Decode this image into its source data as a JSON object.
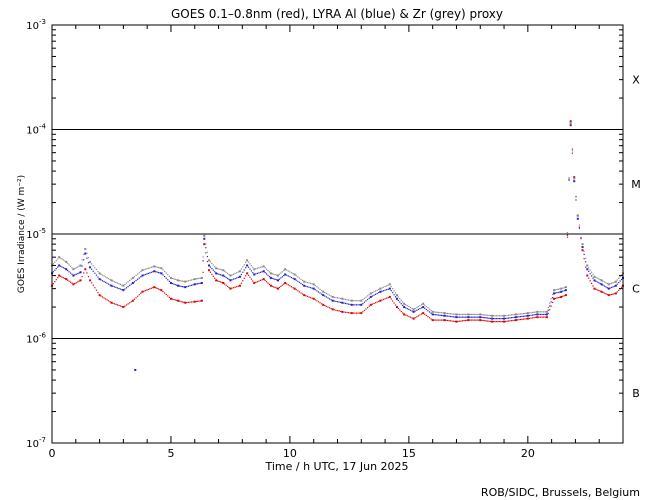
{
  "chart_data": {
    "type": "scatter",
    "title": "GOES 0.1–0.8nm (red), LYRA Al (blue) & Zr (grey) proxy",
    "xlabel": "Time / h UTC, 17 Jun 2025",
    "ylabel": "GOES Irradiance / (W m⁻²)",
    "xlim": [
      0,
      24
    ],
    "ylim": [
      1e-07,
      0.001
    ],
    "yscale": "log",
    "x_ticks": [
      0,
      5,
      10,
      15,
      20
    ],
    "x_tick_labels": [
      "0",
      "5",
      "10",
      "15",
      "20"
    ],
    "y_ticks": [
      {
        "base": "10",
        "exp": "-7",
        "value": 1e-07
      },
      {
        "base": "10",
        "exp": "-6",
        "value": 1e-06
      },
      {
        "base": "10",
        "exp": "-5",
        "value": 1e-05
      },
      {
        "base": "10",
        "exp": "-4",
        "value": 0.0001
      },
      {
        "base": "10",
        "exp": "-3",
        "value": 0.001
      }
    ],
    "flare_class_lines": [
      1e-06,
      1e-05,
      0.0001
    ],
    "flare_classes": [
      {
        "label": "B",
        "value": 3e-07
      },
      {
        "label": "C",
        "value": 3e-06
      },
      {
        "label": "M",
        "value": 3e-05
      },
      {
        "label": "X",
        "value": 0.0003
      }
    ],
    "series": [
      {
        "name": "GOES 0.1–0.8nm",
        "color": "#e00000",
        "x": [
          0.0,
          0.3,
          0.6,
          0.9,
          1.2,
          1.4,
          1.6,
          2.0,
          2.5,
          3.0,
          3.4,
          3.8,
          4.3,
          4.6,
          5.0,
          5.3,
          5.6,
          6.0,
          6.3,
          6.4,
          6.6,
          6.9,
          7.2,
          7.5,
          7.9,
          8.2,
          8.5,
          8.9,
          9.2,
          9.5,
          9.8,
          10.2,
          10.6,
          11.0,
          11.4,
          11.8,
          12.2,
          12.6,
          13.0,
          13.4,
          13.8,
          14.2,
          14.5,
          14.8,
          15.2,
          15.6,
          16.0,
          16.5,
          17.0,
          17.5,
          18.0,
          18.5,
          19.0,
          19.5,
          20.0,
          20.4,
          20.8,
          21.1,
          21.4,
          21.6,
          21.8,
          21.95,
          22.1,
          22.3,
          22.5,
          22.8,
          23.1,
          23.4,
          23.7,
          24.0
        ],
        "y": [
          3.2e-06,
          4e-06,
          3.7e-06,
          3.3e-06,
          3.6e-06,
          4.6e-06,
          3.6e-06,
          2.6e-06,
          2.2e-06,
          2e-06,
          2.3e-06,
          2.8e-06,
          3.1e-06,
          2.9e-06,
          2.4e-06,
          2.3e-06,
          2.2e-06,
          2.25e-06,
          2.3e-06,
          8e-06,
          4.5e-06,
          3.6e-06,
          3.4e-06,
          3e-06,
          3.2e-06,
          4.2e-06,
          3.4e-06,
          3.7e-06,
          3.2e-06,
          3e-06,
          3.4e-06,
          3e-06,
          2.6e-06,
          2.4e-06,
          2.1e-06,
          1.9e-06,
          1.8e-06,
          1.75e-06,
          1.75e-06,
          2.1e-06,
          2.3e-06,
          2.5e-06,
          2e-06,
          1.7e-06,
          1.55e-06,
          1.75e-06,
          1.5e-06,
          1.5e-06,
          1.45e-06,
          1.5e-06,
          1.5e-06,
          1.45e-06,
          1.45e-06,
          1.5e-06,
          1.55e-06,
          1.6e-06,
          1.6e-06,
          2.4e-06,
          2.5e-06,
          2.6e-06,
          0.00012,
          3.5e-05,
          1.5e-05,
          7e-06,
          4e-06,
          3e-06,
          2.8e-06,
          2.6e-06,
          2.7e-06,
          3.2e-06
        ]
      },
      {
        "name": "LYRA Al",
        "color": "#2020d0",
        "x": [
          0.0,
          0.3,
          0.6,
          0.9,
          1.2,
          1.4,
          1.6,
          2.0,
          2.5,
          3.0,
          3.4,
          3.8,
          4.3,
          4.6,
          5.0,
          5.3,
          5.6,
          6.0,
          6.3,
          6.4,
          6.6,
          6.9,
          7.2,
          7.5,
          7.9,
          8.2,
          8.5,
          8.9,
          9.2,
          9.5,
          9.8,
          10.2,
          10.6,
          11.0,
          11.4,
          11.8,
          12.2,
          12.6,
          13.0,
          13.4,
          13.8,
          14.2,
          14.5,
          14.8,
          15.2,
          15.6,
          16.0,
          16.5,
          17.0,
          17.5,
          18.0,
          18.5,
          19.0,
          19.5,
          20.0,
          20.4,
          20.8,
          21.1,
          21.4,
          21.6,
          21.8,
          21.95,
          22.1,
          22.3,
          22.5,
          22.8,
          23.1,
          23.4,
          23.7,
          24.0
        ],
        "y": [
          4.2e-06,
          5e-06,
          4.6e-06,
          4e-06,
          4.3e-06,
          6.5e-06,
          4.8e-06,
          3.7e-06,
          3.2e-06,
          2.9e-06,
          3.4e-06,
          4e-06,
          4.4e-06,
          4.2e-06,
          3.4e-06,
          3.2e-06,
          3.1e-06,
          3.3e-06,
          3.4e-06,
          9e-06,
          5e-06,
          4.2e-06,
          4e-06,
          3.6e-06,
          3.9e-06,
          5e-06,
          4.1e-06,
          4.4e-06,
          3.8e-06,
          3.6e-06,
          4.1e-06,
          3.7e-06,
          3.2e-06,
          3e-06,
          2.6e-06,
          2.3e-06,
          2.2e-06,
          2.1e-06,
          2.1e-06,
          2.5e-06,
          2.8e-06,
          3e-06,
          2.4e-06,
          2e-06,
          1.8e-06,
          2e-06,
          1.7e-06,
          1.65e-06,
          1.6e-06,
          1.6e-06,
          1.6e-06,
          1.55e-06,
          1.55e-06,
          1.6e-06,
          1.65e-06,
          1.7e-06,
          1.7e-06,
          2.7e-06,
          2.8e-06,
          2.9e-06,
          0.00011,
          3.2e-05,
          1.4e-05,
          7.5e-06,
          4.6e-06,
          3.6e-06,
          3.3e-06,
          3e-06,
          3.2e-06,
          3.8e-06
        ]
      },
      {
        "name": "Zr",
        "color": "#8a8a8a",
        "x": [
          0.0,
          0.3,
          0.6,
          0.9,
          1.2,
          1.4,
          1.6,
          2.0,
          2.5,
          3.0,
          3.4,
          3.8,
          4.3,
          4.6,
          5.0,
          5.3,
          5.6,
          6.0,
          6.3,
          6.4,
          6.6,
          6.9,
          7.2,
          7.5,
          7.9,
          8.2,
          8.5,
          8.9,
          9.2,
          9.5,
          9.8,
          10.2,
          10.6,
          11.0,
          11.4,
          11.8,
          12.2,
          12.6,
          13.0,
          13.4,
          13.8,
          14.2,
          14.5,
          14.8,
          15.2,
          15.6,
          16.0,
          16.5,
          17.0,
          17.5,
          18.0,
          18.5,
          19.0,
          19.5,
          20.0,
          20.4,
          20.8,
          21.1,
          21.4,
          21.6,
          21.8,
          21.95,
          22.1,
          22.3,
          22.5,
          22.8,
          23.1,
          23.4,
          23.7,
          24.0
        ],
        "y": [
          5e-06,
          6e-06,
          5.4e-06,
          4.6e-06,
          5e-06,
          7.2e-06,
          5.4e-06,
          4.2e-06,
          3.6e-06,
          3.2e-06,
          3.8e-06,
          4.5e-06,
          4.9e-06,
          4.7e-06,
          3.8e-06,
          3.6e-06,
          3.5e-06,
          3.7e-06,
          3.8e-06,
          9.6e-06,
          5.6e-06,
          4.7e-06,
          4.5e-06,
          4e-06,
          4.4e-06,
          5.6e-06,
          4.6e-06,
          4.9e-06,
          4.2e-06,
          4e-06,
          4.6e-06,
          4.1e-06,
          3.5e-06,
          3.3e-06,
          2.8e-06,
          2.5e-06,
          2.4e-06,
          2.3e-06,
          2.3e-06,
          2.7e-06,
          3e-06,
          3.3e-06,
          2.6e-06,
          2.15e-06,
          1.9e-06,
          2.15e-06,
          1.8e-06,
          1.75e-06,
          1.7e-06,
          1.7e-06,
          1.7e-06,
          1.65e-06,
          1.65e-06,
          1.7e-06,
          1.75e-06,
          1.8e-06,
          1.8e-06,
          2.9e-06,
          3e-06,
          3.1e-06,
          0.000115,
          3.4e-05,
          1.5e-05,
          8e-06,
          5e-06,
          3.9e-06,
          3.6e-06,
          3.3e-06,
          3.5e-06,
          4.2e-06
        ]
      }
    ],
    "outlier_points": [
      {
        "x": 3.5,
        "y": 5e-07
      }
    ]
  },
  "footer": {
    "credit": "ROB/SIDC, Brussels, Belgium"
  }
}
